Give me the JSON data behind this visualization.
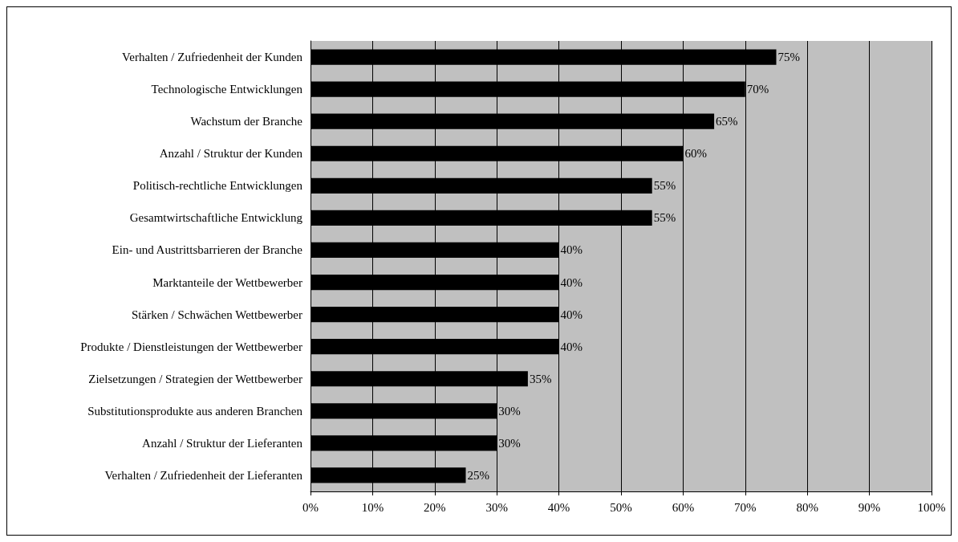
{
  "chart_data": {
    "type": "bar",
    "orientation": "horizontal",
    "categories": [
      "Verhalten / Zufriedenheit der Kunden",
      "Technologische Entwicklungen",
      "Wachstum der Branche",
      "Anzahl / Struktur der Kunden",
      "Politisch-rechtliche Entwicklungen",
      "Gesamtwirtschaftliche Entwicklung",
      "Ein- und Austrittsbarrieren der Branche",
      "Marktanteile der Wettbewerber",
      "Stärken / Schwächen Wettbewerber",
      "Produkte / Dienstleistungen der Wettbewerber",
      "Zielsetzungen / Strategien der Wettbewerber",
      "Substitutionsprodukte aus anderen Branchen",
      "Anzahl / Struktur der Lieferanten",
      "Verhalten / Zufriedenheit der Lieferanten"
    ],
    "values": [
      75,
      70,
      65,
      60,
      55,
      55,
      40,
      40,
      40,
      40,
      35,
      30,
      30,
      25
    ],
    "value_labels": [
      "75%",
      "70%",
      "65%",
      "60%",
      "55%",
      "55%",
      "40%",
      "40%",
      "40%",
      "40%",
      "35%",
      "30%",
      "30%",
      "25%"
    ],
    "color": "#000000",
    "xlim": [
      0,
      100
    ],
    "xticks": [
      {
        "value": 0,
        "label": "0%"
      },
      {
        "value": 10,
        "label": "10%"
      },
      {
        "value": 20,
        "label": "20%"
      },
      {
        "value": 30,
        "label": "30%"
      },
      {
        "value": 40,
        "label": "40%"
      },
      {
        "value": 50,
        "label": "50%"
      },
      {
        "value": 60,
        "label": "60%"
      },
      {
        "value": 70,
        "label": "70%"
      },
      {
        "value": 80,
        "label": "80%"
      },
      {
        "value": 90,
        "label": "90%"
      },
      {
        "value": 100,
        "label": "100%"
      }
    ],
    "grid": "x"
  }
}
